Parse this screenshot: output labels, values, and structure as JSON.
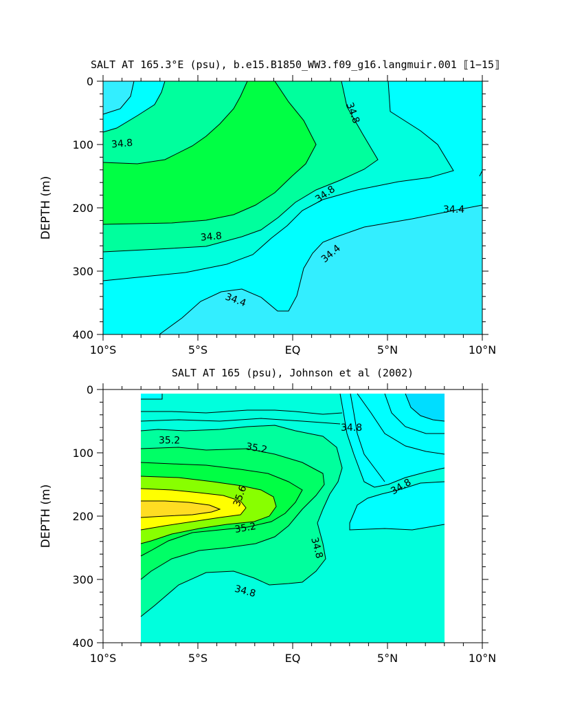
{
  "chart_data": [
    {
      "type": "contour",
      "title": "SALT AT 165.3°E (psu), b.e15.B1850_WW3.f09_g16.langmuir.001 ⟦1−15⟧",
      "xlabel": "",
      "ylabel": "DEPTH (m)",
      "x_ticks": [
        "10°S",
        "5°S",
        "EQ",
        "5°N",
        "10°N"
      ],
      "x_tick_values": [
        -10,
        -5,
        0,
        5,
        10
      ],
      "y_ticks": [
        "0",
        "100",
        "200",
        "300",
        "400"
      ],
      "y_tick_values": [
        0,
        100,
        200,
        300,
        400
      ],
      "xlim": [
        -10,
        10
      ],
      "ylim": [
        400,
        0
      ],
      "contour_labels": [
        {
          "text": "34.8",
          "lon": -9.0,
          "depth": 98,
          "angle": -5
        },
        {
          "text": "34.8",
          "lon": 3.2,
          "depth": 50,
          "angle": 70
        },
        {
          "text": "34.8",
          "lon": 1.7,
          "depth": 178,
          "angle": -35
        },
        {
          "text": "34.8",
          "lon": -4.3,
          "depth": 245,
          "angle": -5
        },
        {
          "text": "34.4",
          "lon": 8.5,
          "depth": 202,
          "angle": 0
        },
        {
          "text": "34.4",
          "lon": 2.0,
          "depth": 272,
          "angle": -40
        },
        {
          "text": "34.4",
          "lon": -3.0,
          "depth": 345,
          "angle": 20
        }
      ]
    },
    {
      "type": "contour",
      "title": "SALT AT 165 (psu), Johnson et al (2002)",
      "xlabel": "",
      "ylabel": "DEPTH (m)",
      "x_ticks": [
        "10°S",
        "5°S",
        "EQ",
        "5°N",
        "10°N"
      ],
      "x_tick_values": [
        -10,
        -5,
        0,
        5,
        10
      ],
      "y_ticks": [
        "0",
        "100",
        "200",
        "300",
        "400"
      ],
      "y_tick_values": [
        0,
        100,
        200,
        300,
        400
      ],
      "xlim": [
        -10,
        10
      ],
      "ylim": [
        400,
        0
      ],
      "data_extent_lon": [
        -8,
        8
      ],
      "contour_labels": [
        {
          "text": "35.2",
          "lon": -6.5,
          "depth": 80,
          "angle": 0
        },
        {
          "text": "35.2",
          "lon": -1.9,
          "depth": 92,
          "angle": 10
        },
        {
          "text": "35.6",
          "lon": -2.8,
          "depth": 168,
          "angle": -70
        },
        {
          "text": "35.2",
          "lon": -2.5,
          "depth": 218,
          "angle": -10
        },
        {
          "text": "34.8",
          "lon": 3.1,
          "depth": 60,
          "angle": 0
        },
        {
          "text": "34.8",
          "lon": 5.7,
          "depth": 153,
          "angle": -30
        },
        {
          "text": "34.8",
          "lon": 1.3,
          "depth": 250,
          "angle": 75
        },
        {
          "text": "34.8",
          "lon": -2.5,
          "depth": 318,
          "angle": 15
        }
      ]
    }
  ],
  "colors": {
    "s_lt_34_4": "#33eeff",
    "s_34_4_34_6": "#00ffff",
    "s_34_6_34_8": "#00ffdd",
    "s_34_8_35_0": "#00ff9d",
    "s_35_0_35_2": "#00ff66",
    "s_35_2_35_4": "#00ff44",
    "s_35_4_35_6": "#88ff00",
    "s_35_6_35_8": "#ffff00",
    "s_gt_35_8": "#ffdd22",
    "obs_shallow": "#00ddff"
  }
}
